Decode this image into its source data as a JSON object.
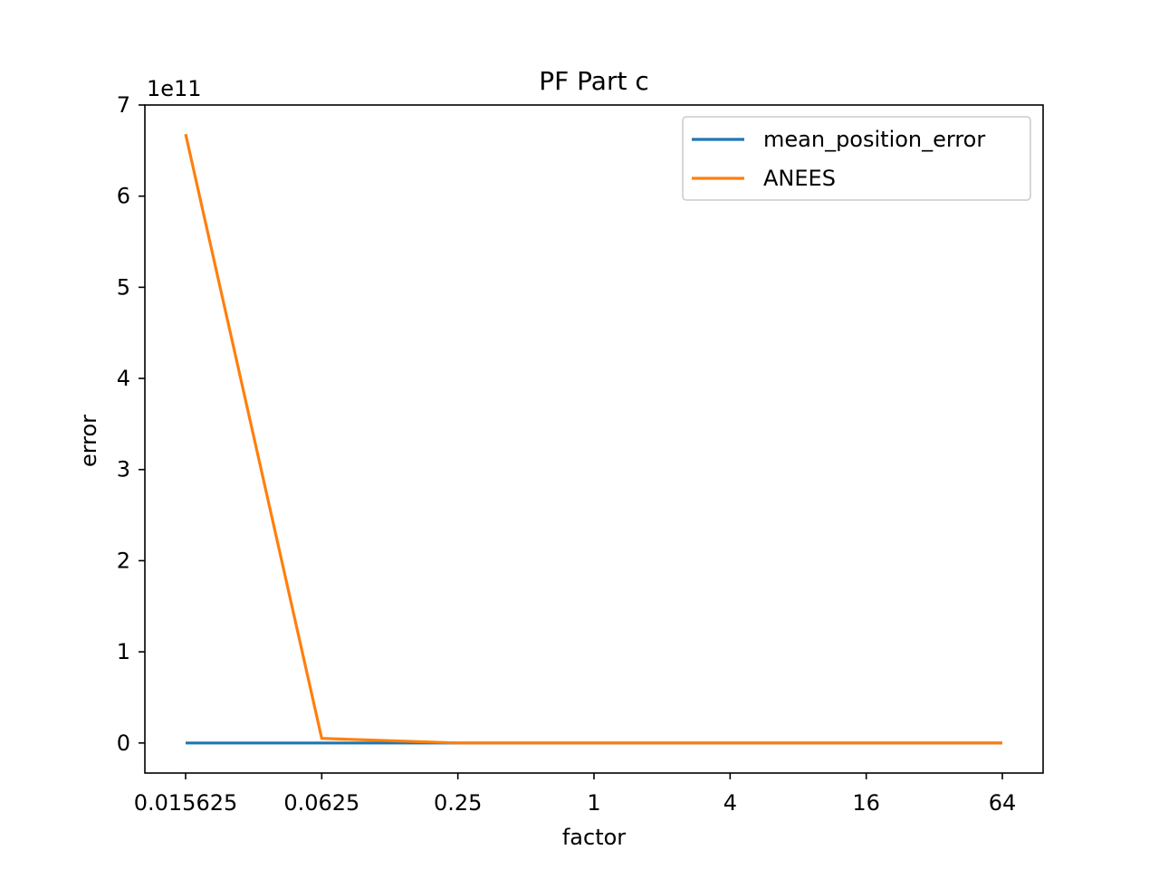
{
  "chart_data": {
    "type": "line",
    "title": "PF Part c",
    "xlabel": "factor",
    "ylabel": "error",
    "y_multiplier": "1e11",
    "categories": [
      "0.015625",
      "0.0625",
      "0.25",
      "1",
      "4",
      "16",
      "64"
    ],
    "ylim": [
      -33000000000.0,
      700000000000.0
    ],
    "yticks": [
      0,
      100000000000.0,
      200000000000.0,
      300000000000.0,
      400000000000.0,
      500000000000.0,
      600000000000.0,
      700000000000.0
    ],
    "ytick_labels": [
      "0",
      "1",
      "2",
      "3",
      "4",
      "5",
      "6",
      "7"
    ],
    "grid": false,
    "legend_position": "top-right",
    "series": [
      {
        "name": "mean_position_error",
        "color": "#1f77b4",
        "values": [
          0,
          0,
          0,
          0,
          0,
          0,
          0
        ]
      },
      {
        "name": "ANEES",
        "color": "#ff7f0e",
        "values": [
          668000000000.0,
          5000000000.0,
          0,
          0,
          0,
          0,
          0
        ]
      }
    ]
  }
}
